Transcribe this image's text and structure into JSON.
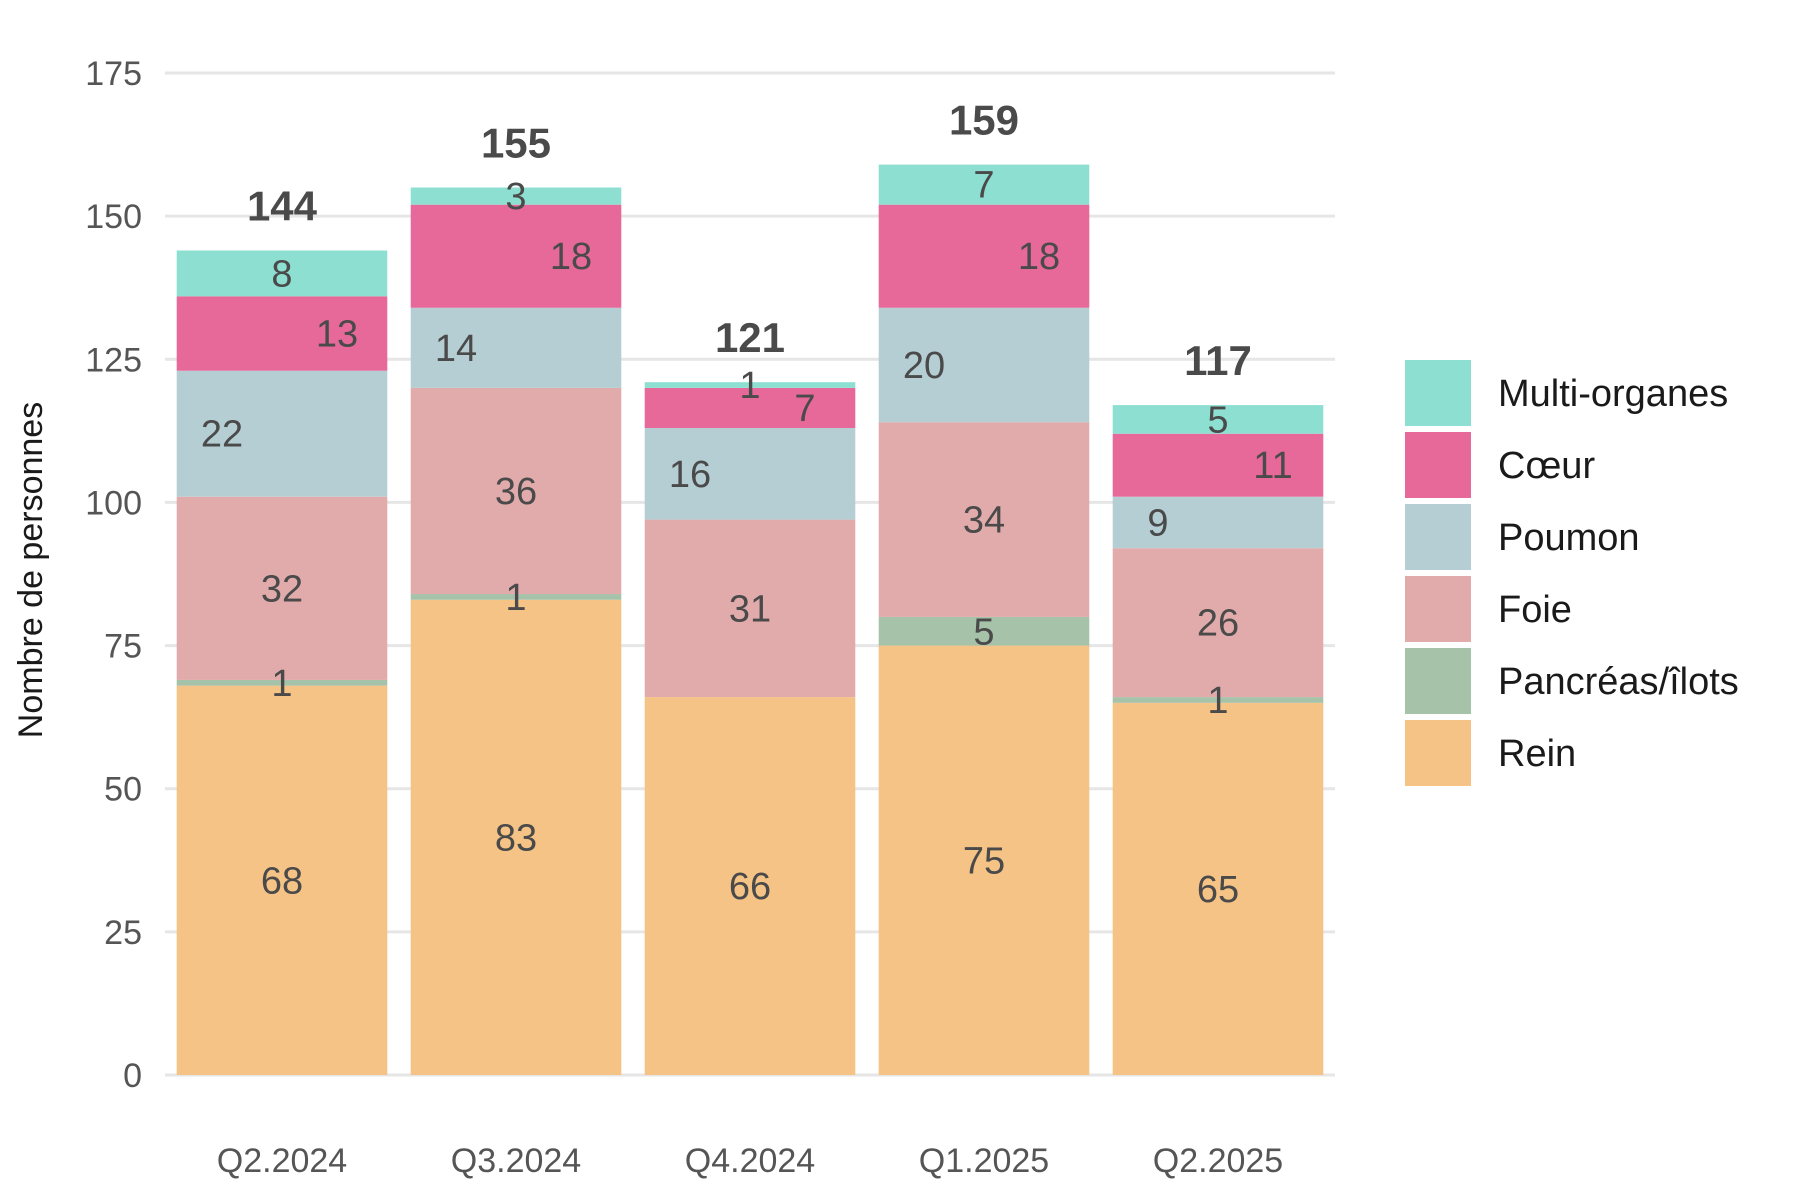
{
  "chart_data": {
    "type": "bar",
    "stacked": true,
    "ylabel": "Nombre de personnes",
    "xlabel": "",
    "ylim": [
      0,
      175
    ],
    "yticks": [
      0,
      25,
      50,
      75,
      100,
      125,
      150,
      175
    ],
    "grid": true,
    "legend_position": "right",
    "categories": [
      "Q2.2024",
      "Q3.2024",
      "Q4.2024",
      "Q1.2025",
      "Q2.2025"
    ],
    "totals": [
      144,
      155,
      121,
      159,
      117
    ],
    "series": [
      {
        "name": "Rein",
        "color": "#F5C385",
        "values": [
          68,
          83,
          66,
          75,
          65
        ]
      },
      {
        "name": "Pancréas/îlots",
        "color": "#A6C2A9",
        "values": [
          1,
          1,
          0,
          5,
          1
        ]
      },
      {
        "name": "Foie",
        "color": "#E2ABAB",
        "values": [
          32,
          36,
          31,
          34,
          26
        ]
      },
      {
        "name": "Poumon",
        "color": "#B5CED3",
        "values": [
          22,
          14,
          16,
          20,
          9
        ]
      },
      {
        "name": "Cœur",
        "color": "#E66999",
        "values": [
          13,
          18,
          7,
          18,
          11
        ]
      },
      {
        "name": "Multi-organes",
        "color": "#8DDFD2",
        "values": [
          8,
          3,
          1,
          7,
          5
        ]
      }
    ],
    "legend_order": [
      "Multi-organes",
      "Cœur",
      "Poumon",
      "Foie",
      "Pancréas/îlots",
      "Rein"
    ]
  }
}
